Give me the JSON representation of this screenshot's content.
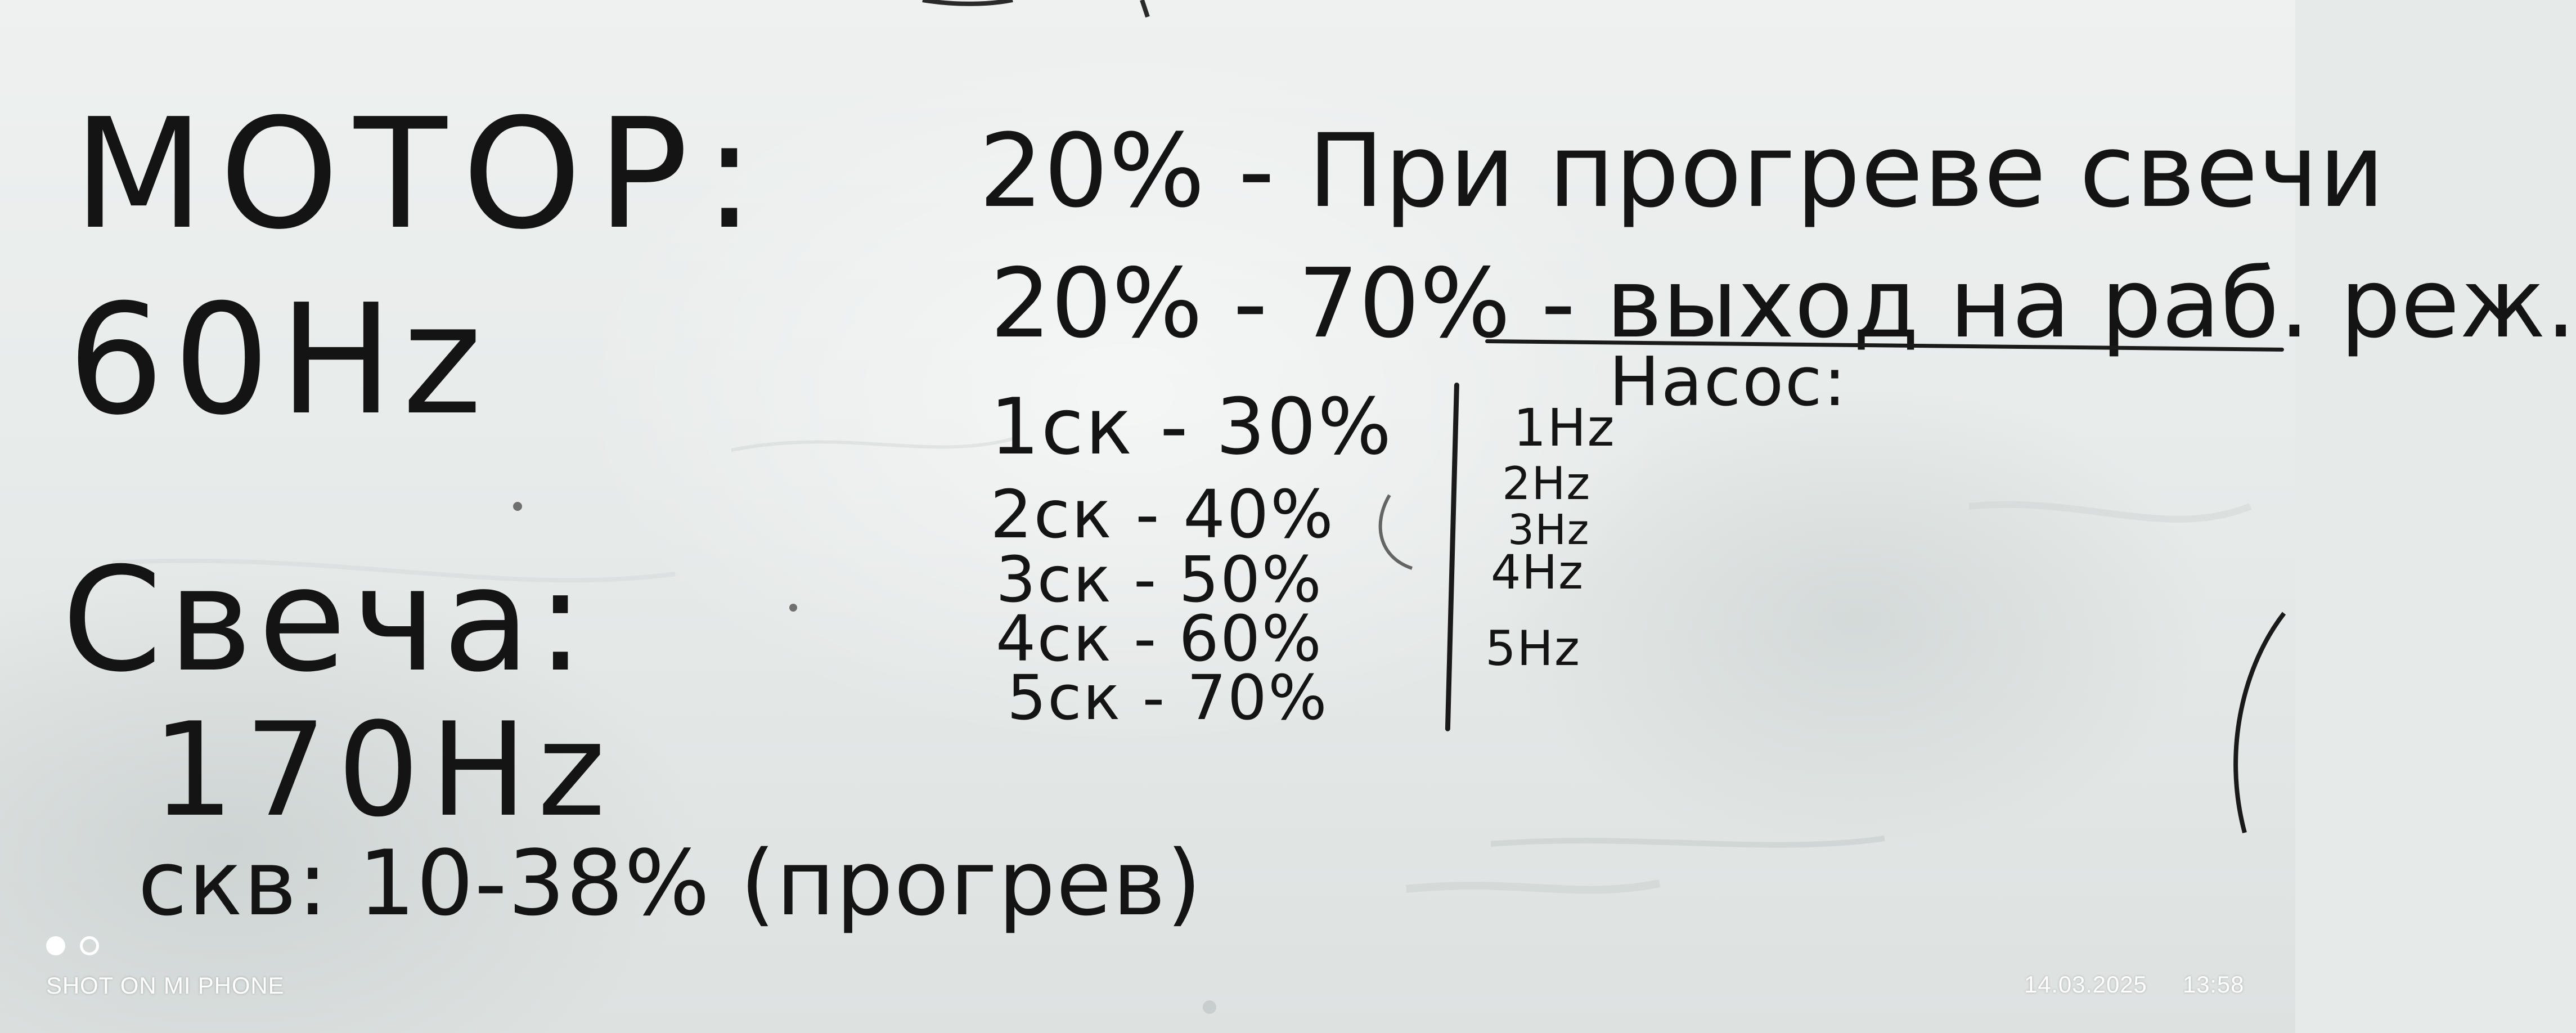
{
  "whiteboard": {
    "left_block": {
      "motor_label": "МОТОР:",
      "motor_freq": "60Hz",
      "svecha_label": "Свеча:",
      "svecha_freq": "170Hz",
      "skv_line": "скв: 10-38% (прогрев)"
    },
    "right_block": {
      "line1": "20% - При прогреве свечи",
      "line2_prefix": "20% - 70% - ",
      "line2_underlined": "выход на раб. реж.",
      "nasos": "Насос:",
      "speeds": [
        {
          "label": "1ск - 30%",
          "hz": "1Hz"
        },
        {
          "label": "2ск - 40%",
          "hz": "2Hz"
        },
        {
          "label": "3ск - 50%",
          "hz": "3Hz"
        },
        {
          "label": "4ск - 60%",
          "hz": "4Hz"
        },
        {
          "label": "5ск - 70%",
          "hz": "5Hz"
        }
      ]
    }
  },
  "camera_overlay": {
    "watermark": "SHOT ON MI PHONE",
    "date": "14.03.2025",
    "time": "13:58"
  },
  "colors": {
    "board": "#e6eae8",
    "marker": "#141414",
    "overlay_text": "#ffffff"
  }
}
